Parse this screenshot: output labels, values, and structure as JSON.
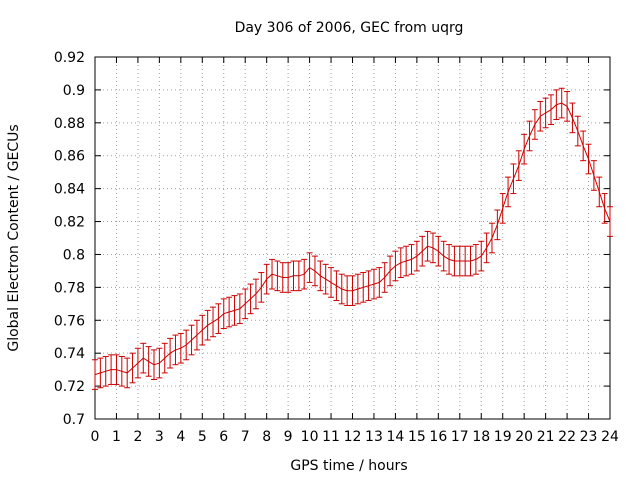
{
  "chart_data": {
    "type": "line",
    "title": "Day 306 of 2006, GEC from uqrg",
    "xlabel": "GPS time / hours",
    "ylabel": "Global Electron Content / GECUs",
    "xlim": [
      0,
      24
    ],
    "ylim": [
      0.7,
      0.92
    ],
    "xticks": [
      "0",
      "1",
      "2",
      "3",
      "4",
      "5",
      "6",
      "7",
      "8",
      "9",
      "10",
      "11",
      "12",
      "13",
      "14",
      "15",
      "16",
      "17",
      "18",
      "19",
      "20",
      "21",
      "22",
      "23",
      "24"
    ],
    "yticks": [
      "0.7",
      "0.72",
      "0.74",
      "0.76",
      "0.78",
      "0.8",
      "0.82",
      "0.84",
      "0.86",
      "0.88",
      "0.9",
      "0.92"
    ],
    "grid": true,
    "series_color": "#cc0000",
    "series": [
      {
        "error": 0.009,
        "x": [
          0,
          0.25,
          0.5,
          0.75,
          1,
          1.25,
          1.5,
          1.75,
          2,
          2.25,
          2.5,
          2.75,
          3,
          3.25,
          3.5,
          3.75,
          4,
          4.25,
          4.5,
          4.75,
          5,
          5.25,
          5.5,
          5.75,
          6,
          6.25,
          6.5,
          6.75,
          7,
          7.25,
          7.5,
          7.75,
          8,
          8.25,
          8.5,
          8.75,
          9,
          9.25,
          9.5,
          9.75,
          10,
          10.25,
          10.5,
          10.75,
          11,
          11.25,
          11.5,
          11.75,
          12,
          12.25,
          12.5,
          12.75,
          13,
          13.25,
          13.5,
          13.75,
          14,
          14.25,
          14.5,
          14.75,
          15,
          15.25,
          15.5,
          15.75,
          16,
          16.25,
          16.5,
          16.75,
          17,
          17.25,
          17.5,
          17.75,
          18,
          18.25,
          18.5,
          18.75,
          19,
          19.25,
          19.5,
          19.75,
          20,
          20.25,
          20.5,
          20.75,
          21,
          21.25,
          21.5,
          21.75,
          22,
          22.25,
          22.5,
          22.75,
          23,
          23.25,
          23.5,
          23.75,
          24
        ],
        "y": [
          0.727,
          0.728,
          0.729,
          0.73,
          0.73,
          0.729,
          0.728,
          0.731,
          0.734,
          0.737,
          0.735,
          0.733,
          0.734,
          0.737,
          0.74,
          0.742,
          0.743,
          0.745,
          0.748,
          0.751,
          0.754,
          0.757,
          0.759,
          0.761,
          0.764,
          0.765,
          0.766,
          0.767,
          0.77,
          0.773,
          0.776,
          0.78,
          0.785,
          0.788,
          0.787,
          0.786,
          0.786,
          0.787,
          0.787,
          0.788,
          0.792,
          0.79,
          0.787,
          0.785,
          0.783,
          0.781,
          0.779,
          0.778,
          0.778,
          0.779,
          0.78,
          0.781,
          0.782,
          0.783,
          0.786,
          0.79,
          0.793,
          0.795,
          0.796,
          0.797,
          0.799,
          0.802,
          0.805,
          0.804,
          0.802,
          0.799,
          0.797,
          0.796,
          0.796,
          0.796,
          0.796,
          0.797,
          0.799,
          0.804,
          0.81,
          0.818,
          0.828,
          0.838,
          0.846,
          0.854,
          0.864,
          0.872,
          0.879,
          0.884,
          0.886,
          0.888,
          0.891,
          0.892,
          0.89,
          0.883,
          0.875,
          0.866,
          0.858,
          0.848,
          0.838,
          0.828,
          0.82
        ]
      }
    ]
  }
}
